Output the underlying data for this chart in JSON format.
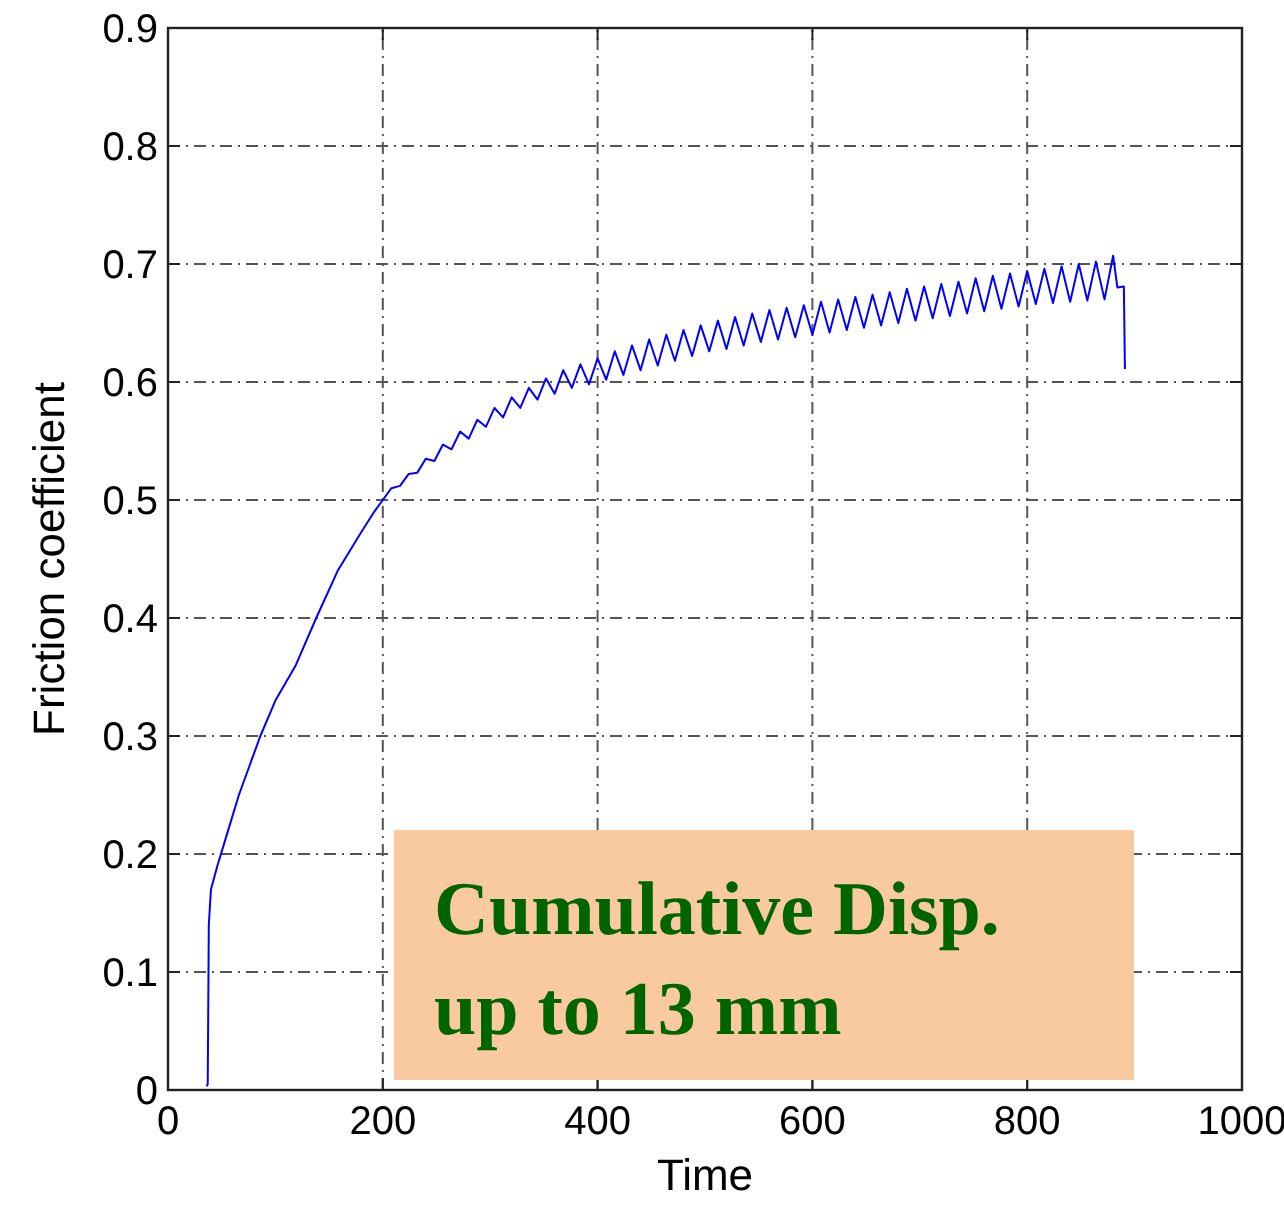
{
  "chart_data": {
    "type": "line",
    "xlabel": "Time",
    "ylabel": "Friction coefficient",
    "xlim": [
      0,
      1000
    ],
    "xticks": [
      0,
      200,
      400,
      600,
      800,
      1000
    ],
    "ylim": [
      0,
      0.9
    ],
    "yticks": [
      0,
      0.1,
      0.2,
      0.3,
      0.4,
      0.5,
      0.6,
      0.7,
      0.8,
      0.9
    ],
    "grid": true,
    "line_style": "solid",
    "marker": "none",
    "annotations": [
      "Cumulative Disp.\nup to 13 mm"
    ],
    "series": [
      {
        "color": "#0000ff",
        "x": [
          36,
          37,
          38,
          40,
          46,
          56,
          66,
          76,
          86,
          100,
          119,
          138,
          158,
          178,
          192,
          200,
          208,
          216,
          224,
          232,
          240,
          248,
          256,
          264,
          272,
          280,
          288,
          296,
          304,
          312,
          320,
          328,
          336,
          344,
          352,
          360,
          368,
          376,
          384,
          392,
          400,
          408,
          416,
          424,
          432,
          440,
          448,
          456,
          464,
          472,
          480,
          488,
          496,
          504,
          512,
          520,
          528,
          536,
          544,
          552,
          560,
          568,
          576,
          584,
          592,
          600,
          608,
          616,
          624,
          632,
          640,
          648,
          656,
          664,
          672,
          680,
          688,
          696,
          704,
          712,
          720,
          728,
          736,
          744,
          752,
          760,
          768,
          776,
          784,
          792,
          800,
          808,
          816,
          824,
          832,
          840,
          848,
          856,
          864,
          872,
          880,
          884,
          890,
          891
        ],
        "values": [
          0.003,
          0.005,
          0.14,
          0.17,
          0.19,
          0.22,
          0.25,
          0.275,
          0.3,
          0.33,
          0.36,
          0.4,
          0.44,
          0.47,
          0.49,
          0.5,
          0.51,
          0.512,
          0.522,
          0.523,
          0.535,
          0.533,
          0.547,
          0.543,
          0.558,
          0.552,
          0.568,
          0.562,
          0.578,
          0.57,
          0.587,
          0.578,
          0.595,
          0.585,
          0.603,
          0.59,
          0.61,
          0.595,
          0.615,
          0.598,
          0.62,
          0.602,
          0.626,
          0.606,
          0.631,
          0.61,
          0.636,
          0.614,
          0.64,
          0.618,
          0.644,
          0.622,
          0.648,
          0.626,
          0.652,
          0.628,
          0.655,
          0.631,
          0.658,
          0.634,
          0.661,
          0.636,
          0.663,
          0.638,
          0.665,
          0.64,
          0.668,
          0.642,
          0.67,
          0.644,
          0.672,
          0.646,
          0.674,
          0.648,
          0.676,
          0.65,
          0.679,
          0.652,
          0.681,
          0.654,
          0.683,
          0.656,
          0.685,
          0.658,
          0.688,
          0.66,
          0.69,
          0.662,
          0.692,
          0.664,
          0.694,
          0.666,
          0.696,
          0.667,
          0.698,
          0.668,
          0.7,
          0.669,
          0.702,
          0.67,
          0.707,
          0.68,
          0.681,
          0.611
        ]
      }
    ]
  }
}
